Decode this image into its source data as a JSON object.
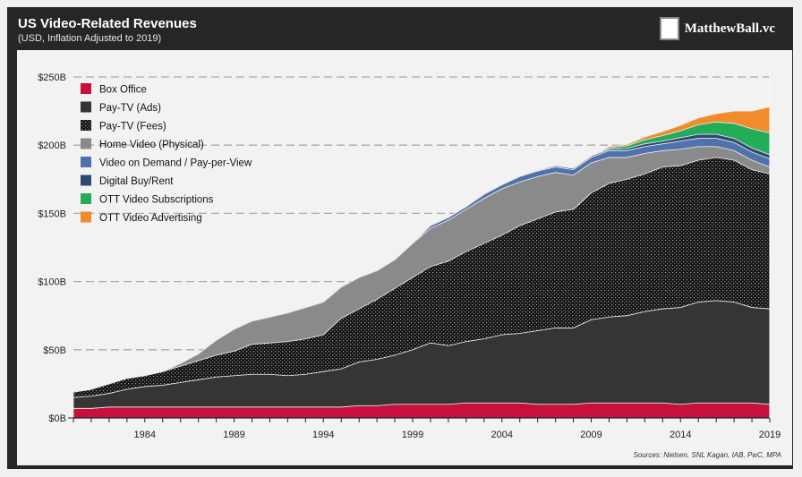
{
  "header": {
    "title": "US Video-Related Revenues",
    "subtitle": "(USD, Inflation Adjusted to 2019)",
    "logo_text": "MatthewBall.vc"
  },
  "source": "Sources: Nielsen, SNL Kagan, IAB, PwC, MPA",
  "chart_data": {
    "type": "area",
    "stacked": true,
    "title": "US Video-Related Revenues",
    "subtitle": "(USD, Inflation Adjusted to 2019)",
    "xlabel": "",
    "ylabel": "",
    "ylim": [
      0,
      250
    ],
    "y_ticks": [
      "$0B",
      "$50B",
      "$100B",
      "$150B",
      "$200B",
      "$250B"
    ],
    "y_tick_values": [
      0,
      50,
      100,
      150,
      200,
      250
    ],
    "x_tick_labels": [
      "1984",
      "1989",
      "1994",
      "1999",
      "2004",
      "2009",
      "2014",
      "2019"
    ],
    "x_tick_values": [
      1984,
      1989,
      1994,
      1999,
      2004,
      2009,
      2014,
      2019
    ],
    "grid": "horizontal dashed",
    "legend_position": "top-left",
    "x": [
      1980,
      1981,
      1982,
      1983,
      1984,
      1985,
      1986,
      1987,
      1988,
      1989,
      1990,
      1991,
      1992,
      1993,
      1994,
      1995,
      1996,
      1997,
      1998,
      1999,
      2000,
      2001,
      2002,
      2003,
      2004,
      2005,
      2006,
      2007,
      2008,
      2009,
      2010,
      2011,
      2012,
      2013,
      2014,
      2015,
      2016,
      2017,
      2018,
      2019
    ],
    "series": [
      {
        "name": "Box Office",
        "color": "#c8103f",
        "values": [
          7,
          7,
          8,
          8,
          8,
          8,
          8,
          8,
          8,
          8,
          8,
          8,
          8,
          8,
          8,
          8,
          9,
          9,
          10,
          10,
          10,
          10,
          11,
          11,
          11,
          11,
          10,
          10,
          10,
          11,
          11,
          11,
          11,
          11,
          10,
          11,
          11,
          11,
          11,
          10
        ]
      },
      {
        "name": "Pay-TV (Ads)",
        "color": "#353535",
        "values": [
          8,
          9,
          10,
          13,
          15,
          16,
          18,
          20,
          22,
          23,
          24,
          24,
          23,
          24,
          26,
          28,
          32,
          34,
          36,
          40,
          45,
          43,
          45,
          47,
          50,
          51,
          54,
          56,
          56,
          61,
          63,
          64,
          67,
          69,
          71,
          74,
          75,
          74,
          70,
          70
        ]
      },
      {
        "name": "Pay-TV (Fees)",
        "color": "#111111",
        "pattern": "dots",
        "values": [
          4,
          5,
          7,
          8,
          8,
          10,
          12,
          14,
          16,
          18,
          22,
          23,
          25,
          26,
          27,
          37,
          39,
          44,
          49,
          53,
          56,
          62,
          66,
          70,
          73,
          79,
          82,
          85,
          87,
          93,
          98,
          100,
          101,
          104,
          104,
          104,
          105,
          104,
          101,
          99
        ]
      },
      {
        "name": "Home Video (Physical)",
        "color": "#8a8a8a",
        "values": [
          0,
          0,
          0,
          0,
          0,
          0,
          2,
          5,
          11,
          16,
          17,
          19,
          21,
          23,
          24,
          23,
          23,
          21,
          21,
          25,
          28,
          30,
          31,
          33,
          34,
          32,
          31,
          29,
          25,
          22,
          19,
          16,
          15,
          12,
          12,
          10,
          8,
          7,
          7,
          5
        ]
      },
      {
        "name": "Video on Demand / Pay-per-View",
        "color": "#4f72ad",
        "values": [
          0,
          0,
          0,
          0,
          0,
          0,
          0,
          0,
          0,
          0,
          0,
          0,
          0,
          0,
          0,
          0,
          0,
          0,
          0,
          0,
          2,
          2,
          2,
          3,
          3,
          4,
          4,
          4,
          4,
          4,
          5,
          5,
          5,
          5,
          6,
          6,
          6,
          6,
          6,
          6
        ]
      },
      {
        "name": "Digital Buy/Rent",
        "color": "#2f4a72",
        "values": [
          0,
          0,
          0,
          0,
          0,
          0,
          0,
          0,
          0,
          0,
          0,
          0,
          0,
          0,
          0,
          0,
          0,
          0,
          0,
          0,
          0,
          0,
          0,
          0,
          0,
          0,
          0.5,
          1,
          1,
          1,
          1,
          1.5,
          2,
          2,
          2.5,
          3,
          3,
          3,
          3,
          3
        ]
      },
      {
        "name": "OTT Video Subscriptions",
        "color": "#23ad5b",
        "values": [
          0,
          0,
          0,
          0,
          0,
          0,
          0,
          0,
          0,
          0,
          0,
          0,
          0,
          0,
          0,
          0,
          0,
          0,
          0,
          0,
          0,
          0,
          0,
          0,
          0,
          0,
          0,
          0,
          0,
          0,
          1,
          2,
          3,
          4,
          5,
          7,
          9,
          11,
          14,
          16
        ]
      },
      {
        "name": "OTT Video Advertising",
        "color": "#f28b2a",
        "values": [
          0,
          0,
          0,
          0,
          0,
          0,
          0,
          0,
          0,
          0,
          0,
          0,
          0,
          0,
          0,
          0,
          0,
          0,
          0,
          0,
          0,
          0,
          0,
          0,
          0,
          0,
          0,
          0,
          0,
          0,
          1,
          1,
          2,
          3,
          4,
          5,
          6,
          9,
          13,
          19
        ]
      }
    ]
  }
}
